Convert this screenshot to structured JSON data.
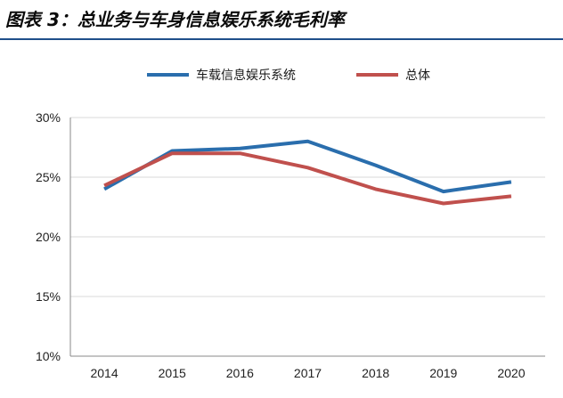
{
  "figure": {
    "title": "图表 3：总业务与车身信息娱乐系统毛利率"
  },
  "colors": {
    "title_rule": "#1f4f8a",
    "grid": "#d9d9d9",
    "axis": "#888888"
  },
  "chart_data": {
    "type": "line",
    "title": "",
    "xlabel": "",
    "ylabel": "",
    "categories": [
      "2014",
      "2015",
      "2016",
      "2017",
      "2018",
      "2019",
      "2020"
    ],
    "y_tick_labels": [
      "30%",
      "25%",
      "20%",
      "15%",
      "10%"
    ],
    "y_ticks": [
      30,
      25,
      20,
      15,
      10
    ],
    "ylim": [
      10,
      30
    ],
    "grid": true,
    "legend_position": "top",
    "series": [
      {
        "name": "车载信息娱乐系统",
        "color": "#2a6ead",
        "values": [
          24.0,
          27.2,
          27.4,
          28.0,
          26.0,
          23.8,
          24.6
        ]
      },
      {
        "name": "总体",
        "color": "#c0504d",
        "values": [
          24.3,
          27.0,
          27.0,
          25.8,
          24.0,
          22.8,
          23.4
        ]
      }
    ]
  }
}
